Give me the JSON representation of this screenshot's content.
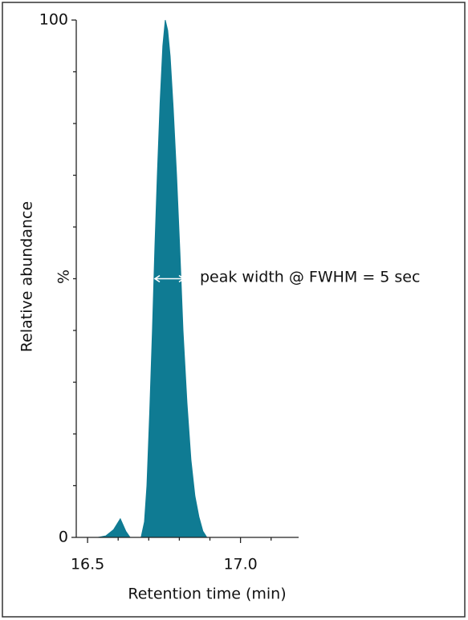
{
  "chart_data": {
    "type": "area",
    "x_label": "Retention time (min)",
    "y_label": "Relative abundance",
    "y_unit_label": "%",
    "annotation": "peak width @ FWHM = 5 sec",
    "color": "#0f7b93",
    "x": [
      16.534,
      16.56,
      16.585,
      16.607,
      16.625,
      16.639,
      16.675,
      16.686,
      16.694,
      16.703,
      16.712,
      16.72,
      16.728,
      16.737,
      16.746,
      16.754,
      16.762,
      16.77,
      16.78,
      16.791,
      16.802,
      16.812,
      16.825,
      16.838,
      16.851,
      16.864,
      16.877,
      16.89
    ],
    "values": [
      0,
      0.3,
      1.5,
      3.6,
      1.2,
      0,
      0,
      3,
      10,
      24,
      40,
      56,
      70,
      84,
      95,
      100,
      98,
      93,
      83,
      70,
      55,
      40,
      26,
      15,
      8,
      4,
      1.2,
      0
    ],
    "xlim": [
      16.463,
      17.19
    ],
    "ylim": [
      0,
      100
    ],
    "xticks": [
      16.5,
      {
        "value": 17,
        "label": "17.0"
      }
    ],
    "yticks": [
      0,
      100
    ],
    "y_minor_ticks": [
      10,
      20,
      30,
      40,
      50,
      60,
      70,
      80,
      90
    ],
    "x_minor_ticks": [
      16.6,
      16.7,
      16.8,
      16.9,
      17.1
    ]
  }
}
